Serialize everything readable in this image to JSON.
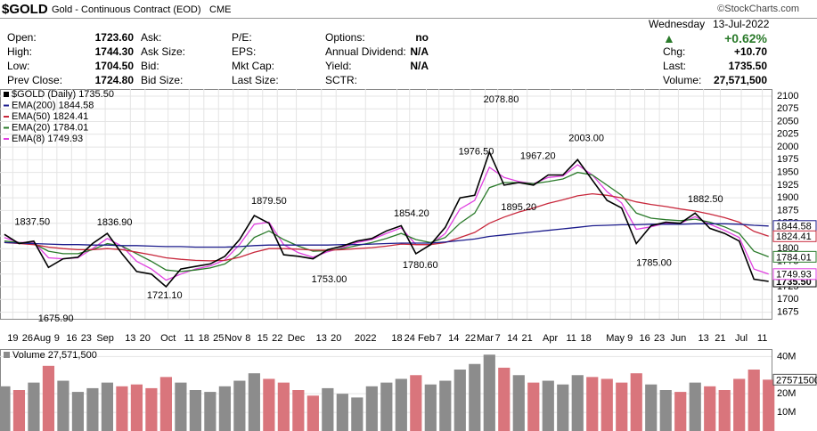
{
  "header": {
    "symbol": "$GOLD",
    "description": "Gold - Continuous Contract (EOD)",
    "exchange": "CME",
    "copyright": "©StockCharts.com"
  },
  "quote": {
    "day": "Wednesday",
    "date": "13-Jul-2022",
    "change_pct": "+0.62%",
    "fields": [
      {
        "label": "Chg:",
        "value": "+10.70"
      },
      {
        "label": "Last:",
        "value": "1735.50"
      },
      {
        "label": "Volume:",
        "value": "27,571,500"
      }
    ],
    "rows": [
      [
        {
          "label": "Open:",
          "value": "1723.60"
        },
        {
          "label": "Ask:"
        },
        {
          "label": "P/E:"
        },
        {
          "label": "Options:",
          "value": "no"
        }
      ],
      [
        {
          "label": "High:",
          "value": "1744.30"
        },
        {
          "label": "Ask Size:"
        },
        {
          "label": "EPS:"
        },
        {
          "label": "Annual Dividend:",
          "value": "N/A"
        }
      ],
      [
        {
          "label": "Low:",
          "value": "1704.50"
        },
        {
          "label": "Bid:"
        },
        {
          "label": "Mkt Cap:"
        },
        {
          "label": "Yield:",
          "value": "N/A"
        }
      ],
      [
        {
          "label": "Prev Close:",
          "value": "1724.80"
        },
        {
          "label": "Bid Size:"
        },
        {
          "label": "Last Size:"
        },
        {
          "label": "SCTR:"
        }
      ]
    ]
  },
  "chart_data": [
    {
      "type": "line",
      "x": [
        0,
        1,
        2,
        3,
        4,
        5,
        6,
        7,
        8,
        9,
        10,
        11,
        12,
        13,
        14,
        15,
        16,
        17,
        18,
        19,
        20,
        21,
        22,
        23,
        24,
        25,
        26,
        27,
        28,
        29,
        30,
        31,
        32,
        33,
        34,
        35,
        36,
        37,
        38,
        39,
        40,
        41,
        42,
        43,
        44,
        45,
        46,
        47,
        48,
        49,
        50,
        51,
        52
      ],
      "xlim": [
        -0.3,
        52.2
      ],
      "xticks": [
        {
          "value": 0.57,
          "label": "19"
        },
        {
          "value": 1.57,
          "label": "26"
        },
        {
          "value": 2.57,
          "label": "Aug"
        },
        {
          "value": 3.57,
          "label": "9"
        },
        {
          "value": 4.57,
          "label": "16"
        },
        {
          "value": 5.57,
          "label": "23"
        },
        {
          "value": 6.86,
          "label": "Sep"
        },
        {
          "value": 8.57,
          "label": "13"
        },
        {
          "value": 9.57,
          "label": "20"
        },
        {
          "value": 11.14,
          "label": "Oct"
        },
        {
          "value": 12.57,
          "label": "11"
        },
        {
          "value": 13.57,
          "label": "18"
        },
        {
          "value": 14.57,
          "label": "25"
        },
        {
          "value": 15.57,
          "label": "Nov"
        },
        {
          "value": 16.57,
          "label": "8"
        },
        {
          "value": 17.57,
          "label": "15"
        },
        {
          "value": 18.57,
          "label": "22"
        },
        {
          "value": 19.86,
          "label": "Dec"
        },
        {
          "value": 21.57,
          "label": "13"
        },
        {
          "value": 22.57,
          "label": "20"
        },
        {
          "value": 24.57,
          "label": "2022"
        },
        {
          "value": 26.71,
          "label": "18"
        },
        {
          "value": 27.57,
          "label": "24"
        },
        {
          "value": 28.71,
          "label": "Feb"
        },
        {
          "value": 29.57,
          "label": "7"
        },
        {
          "value": 30.57,
          "label": "14"
        },
        {
          "value": 31.71,
          "label": "22"
        },
        {
          "value": 32.71,
          "label": "Mar"
        },
        {
          "value": 33.57,
          "label": "7"
        },
        {
          "value": 34.57,
          "label": "14"
        },
        {
          "value": 35.57,
          "label": "21"
        },
        {
          "value": 37.14,
          "label": "Apr"
        },
        {
          "value": 38.57,
          "label": "11"
        },
        {
          "value": 39.57,
          "label": "18"
        },
        {
          "value": 41.57,
          "label": "May"
        },
        {
          "value": 42.57,
          "label": "9"
        },
        {
          "value": 43.57,
          "label": "16"
        },
        {
          "value": 44.57,
          "label": "23"
        },
        {
          "value": 45.86,
          "label": "Jun"
        },
        {
          "value": 47.57,
          "label": "13"
        },
        {
          "value": 48.71,
          "label": "21"
        },
        {
          "value": 50.14,
          "label": "Jul"
        },
        {
          "value": 51.57,
          "label": "11"
        }
      ],
      "ylim": [
        1662,
        2114
      ],
      "yticks": [
        1675,
        1700,
        1725,
        1750,
        1775,
        1800,
        1825,
        1850,
        1875,
        1900,
        1925,
        1950,
        1975,
        2000,
        2025,
        2050,
        2075,
        2100
      ],
      "grid": true,
      "series": [
        {
          "name": "$GOLD (Daily)",
          "last_label": "1735.50",
          "color": "#000000",
          "values": [
            1828,
            1810,
            1815,
            1763,
            1780,
            1783,
            1810,
            1830,
            1790,
            1755,
            1750,
            1725,
            1760,
            1765,
            1770,
            1785,
            1818,
            1865,
            1850,
            1788,
            1785,
            1780,
            1798,
            1805,
            1815,
            1820,
            1835,
            1845,
            1790,
            1808,
            1842,
            1900,
            1905,
            1990,
            1925,
            1930,
            1925,
            1945,
            1945,
            1975,
            1935,
            1895,
            1880,
            1810,
            1845,
            1852,
            1850,
            1870,
            1840,
            1830,
            1815,
            1740,
            1735.5
          ]
        },
        {
          "name": "EMA(200)",
          "last_label": "1844.58",
          "color": "#1c1c8c",
          "values": [
            1812,
            1811,
            1810,
            1809,
            1808,
            1808,
            1807,
            1807,
            1806,
            1806,
            1805,
            1804,
            1804,
            1803,
            1803,
            1803,
            1804,
            1806,
            1807,
            1807,
            1807,
            1807,
            1807,
            1808,
            1808,
            1809,
            1810,
            1811,
            1811,
            1811,
            1813,
            1816,
            1819,
            1824,
            1827,
            1830,
            1833,
            1836,
            1839,
            1842,
            1845,
            1846,
            1847,
            1847,
            1848,
            1848,
            1848,
            1849,
            1849,
            1849,
            1848,
            1846,
            1844.58
          ]
        },
        {
          "name": "EMA(50)",
          "last_label": "1824.41",
          "color": "#c8283c",
          "values": [
            1812,
            1810,
            1808,
            1803,
            1800,
            1798,
            1798,
            1800,
            1798,
            1793,
            1788,
            1782,
            1779,
            1777,
            1776,
            1777,
            1783,
            1793,
            1800,
            1800,
            1799,
            1797,
            1797,
            1798,
            1800,
            1802,
            1805,
            1809,
            1808,
            1808,
            1812,
            1822,
            1832,
            1850,
            1862,
            1872,
            1880,
            1889,
            1896,
            1904,
            1908,
            1905,
            1900,
            1892,
            1887,
            1883,
            1878,
            1874,
            1868,
            1861,
            1852,
            1834,
            1824.41
          ]
        },
        {
          "name": "EMA(20)",
          "last_label": "1784.01",
          "color": "#2a7a2a",
          "values": [
            1815,
            1812,
            1810,
            1795,
            1790,
            1790,
            1798,
            1810,
            1805,
            1790,
            1775,
            1758,
            1755,
            1758,
            1762,
            1770,
            1790,
            1822,
            1835,
            1818,
            1805,
            1795,
            1796,
            1800,
            1806,
            1812,
            1820,
            1830,
            1818,
            1812,
            1822,
            1850,
            1870,
            1920,
            1930,
            1930,
            1928,
            1932,
            1937,
            1950,
            1945,
            1925,
            1905,
            1870,
            1860,
            1857,
            1855,
            1858,
            1852,
            1843,
            1830,
            1795,
            1784.01
          ]
        },
        {
          "name": "EMA(8)",
          "last_label": "1749.93",
          "color": "#e040e0",
          "values": [
            1822,
            1812,
            1813,
            1782,
            1780,
            1782,
            1800,
            1820,
            1805,
            1775,
            1760,
            1738,
            1750,
            1760,
            1766,
            1778,
            1808,
            1848,
            1852,
            1808,
            1792,
            1783,
            1794,
            1802,
            1812,
            1818,
            1830,
            1841,
            1808,
            1808,
            1830,
            1878,
            1895,
            1960,
            1940,
            1932,
            1928,
            1940,
            1943,
            1965,
            1945,
            1912,
            1890,
            1838,
            1843,
            1850,
            1850,
            1863,
            1848,
            1836,
            1822,
            1760,
            1749.93
          ]
        }
      ],
      "annotations": [
        {
          "x": 1.9,
          "value": 1837.5,
          "label": "1837.50"
        },
        {
          "x": 3.5,
          "value": 1675.9,
          "label": "1675.90"
        },
        {
          "x": 7.5,
          "value": 1836.9,
          "label": "1836.90"
        },
        {
          "x": 10.9,
          "value": 1721.1,
          "label": "1721.10"
        },
        {
          "x": 18.0,
          "value": 1879.5,
          "label": "1879.50"
        },
        {
          "x": 22.1,
          "value": 1753.0,
          "label": "1753.00"
        },
        {
          "x": 27.7,
          "value": 1854.2,
          "label": "1854.20"
        },
        {
          "x": 28.3,
          "value": 1780.6,
          "label": "1780.60"
        },
        {
          "x": 32.1,
          "value": 1976.5,
          "label": "1976.50"
        },
        {
          "x": 33.8,
          "value": 2078.8,
          "label": "2078.80"
        },
        {
          "x": 35.0,
          "value": 1895.2,
          "label": "1895.20"
        },
        {
          "x": 36.3,
          "value": 1967.2,
          "label": "1967.20"
        },
        {
          "x": 39.6,
          "value": 2003.0,
          "label": "2003.00"
        },
        {
          "x": 44.2,
          "value": 1785.0,
          "label": "1785.00"
        },
        {
          "x": 47.7,
          "value": 1882.5,
          "label": "1882.50"
        }
      ]
    },
    {
      "type": "bar",
      "name": "Volume",
      "last_label": "27,571,500",
      "box_label": "27571500",
      "x": [
        0,
        1,
        2,
        3,
        4,
        5,
        6,
        7,
        8,
        9,
        10,
        11,
        12,
        13,
        14,
        15,
        16,
        17,
        18,
        19,
        20,
        21,
        22,
        23,
        24,
        25,
        26,
        27,
        28,
        29,
        30,
        31,
        32,
        33,
        34,
        35,
        36,
        37,
        38,
        39,
        40,
        41,
        42,
        43,
        44,
        45,
        46,
        47,
        48,
        49,
        50,
        51,
        52
      ],
      "xlim": [
        -0.3,
        52.2
      ],
      "ylim": [
        0,
        44000000
      ],
      "yticks": [
        {
          "value": 10000000,
          "label": "10M"
        },
        {
          "value": 20000000,
          "label": "20M"
        },
        {
          "value": 40000000,
          "label": "40M"
        }
      ],
      "values": [
        24000000,
        22000000,
        26000000,
        35000000,
        27000000,
        21000000,
        23000000,
        26000000,
        24000000,
        25000000,
        23000000,
        29000000,
        26000000,
        22000000,
        21000000,
        24000000,
        27000000,
        31000000,
        28000000,
        26000000,
        22000000,
        19000000,
        23000000,
        20000000,
        18000000,
        24000000,
        26000000,
        28000000,
        30000000,
        25000000,
        27000000,
        33000000,
        36000000,
        41000000,
        34000000,
        30000000,
        26000000,
        27000000,
        25000000,
        30000000,
        29000000,
        28000000,
        26000000,
        31000000,
        25000000,
        22000000,
        21000000,
        26000000,
        24000000,
        22000000,
        28000000,
        33000000,
        27571500
      ],
      "colors": {
        "up": "#8c8c8c",
        "down": "#d9757c"
      }
    }
  ]
}
